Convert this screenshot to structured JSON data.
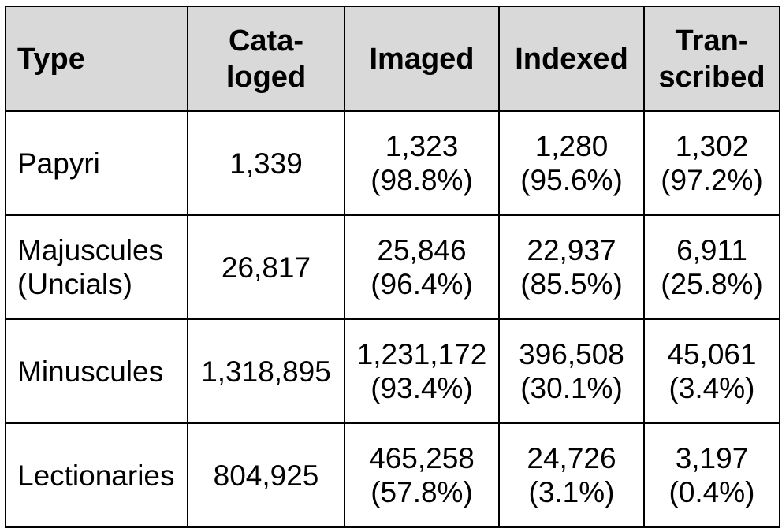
{
  "headers": {
    "type": "Type",
    "cataloged": [
      "Cata-",
      "loged"
    ],
    "imaged": "Imaged",
    "indexed": "Indexed",
    "transcribed": [
      "Tran-",
      "scribed"
    ]
  },
  "rows": [
    {
      "type": [
        "Papyri"
      ],
      "cataloged": "1,339",
      "imaged": {
        "value": "1,323",
        "pct": "(98.8%)"
      },
      "indexed": {
        "value": "1,280",
        "pct": "(95.6%)"
      },
      "transcribed": {
        "value": "1,302",
        "pct": "(97.2%)"
      }
    },
    {
      "type": [
        "Majuscules",
        "(Uncials)"
      ],
      "cataloged": "26,817",
      "imaged": {
        "value": "25,846",
        "pct": "(96.4%)"
      },
      "indexed": {
        "value": "22,937",
        "pct": "(85.5%)"
      },
      "transcribed": {
        "value": "6,911",
        "pct": "(25.8%)"
      }
    },
    {
      "type": [
        "Minuscules"
      ],
      "cataloged": "1,318,895",
      "imaged": {
        "value": "1,231,172",
        "pct": "(93.4%)"
      },
      "indexed": {
        "value": "396,508",
        "pct": "(30.1%)"
      },
      "transcribed": {
        "value": "45,061",
        "pct": "(3.4%)"
      }
    },
    {
      "type": [
        "Lectionaries"
      ],
      "cataloged": "804,925",
      "imaged": {
        "value": "465,258",
        "pct": "(57.8%)"
      },
      "indexed": {
        "value": "24,726",
        "pct": "(3.1%)"
      },
      "transcribed": {
        "value": "3,197",
        "pct": "(0.4%)"
      }
    }
  ]
}
